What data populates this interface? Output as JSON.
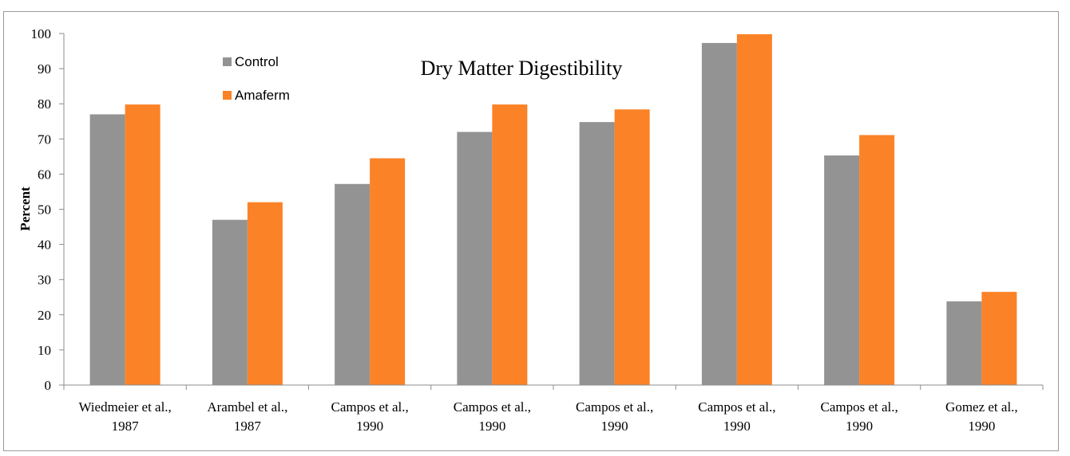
{
  "chart_data": {
    "type": "bar",
    "title": "Dry Matter Digestibility",
    "ylabel": "Percent",
    "xlabel": "",
    "ylim": [
      0,
      100
    ],
    "yticks": [
      0,
      10,
      20,
      30,
      40,
      50,
      60,
      70,
      80,
      90,
      100
    ],
    "grid": false,
    "legend_position": "top-left",
    "categories": [
      [
        "Wiedmeier et al.,",
        "1987"
      ],
      [
        "Arambel et al.,",
        "1987"
      ],
      [
        "Campos et al.,",
        "1990"
      ],
      [
        "Campos et al.,",
        "1990"
      ],
      [
        "Campos et al.,",
        "1990"
      ],
      [
        "Campos et al.,",
        "1990"
      ],
      [
        "Campos et al.,",
        "1990"
      ],
      [
        "Gomez et al.,",
        "1990"
      ]
    ],
    "series": [
      {
        "name": "Control",
        "color": "#939393",
        "values": [
          77,
          47,
          57.2,
          72,
          74.8,
          97.3,
          65.3,
          23.8
        ]
      },
      {
        "name": "Amaferm",
        "color": "#fb8226",
        "values": [
          79.8,
          52,
          64.5,
          79.8,
          78.4,
          99.8,
          71.1,
          26.5
        ]
      }
    ]
  }
}
